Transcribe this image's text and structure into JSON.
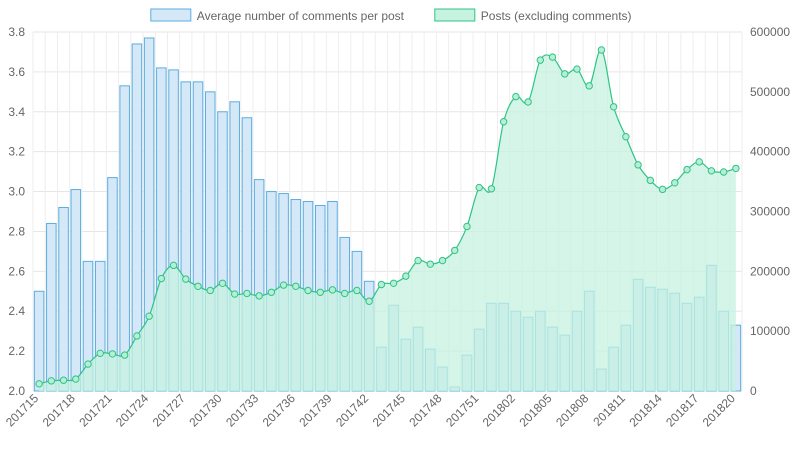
{
  "chart_data": {
    "type": "bar",
    "legend_position": "top-center",
    "grid": true,
    "categories": [
      "201715",
      "201716",
      "201717",
      "201718",
      "201719",
      "201720",
      "201721",
      "201722",
      "201723",
      "201724",
      "201725",
      "201726",
      "201727",
      "201728",
      "201729",
      "201730",
      "201731",
      "201732",
      "201733",
      "201734",
      "201735",
      "201736",
      "201737",
      "201738",
      "201739",
      "201740",
      "201741",
      "201742",
      "201743",
      "201744",
      "201745",
      "201746",
      "201747",
      "201748",
      "201749",
      "201750",
      "201751",
      "201752",
      "201801",
      "201802",
      "201803",
      "201804",
      "201805",
      "201806",
      "201807",
      "201808",
      "201809",
      "201810",
      "201811",
      "201812",
      "201813",
      "201814",
      "201815",
      "201816",
      "201817",
      "201818",
      "201819",
      "201820"
    ],
    "x_tick_labels": [
      "201715",
      "201718",
      "201721",
      "201724",
      "201727",
      "201730",
      "201733",
      "201736",
      "201739",
      "201742",
      "201745",
      "201748",
      "201751",
      "201802",
      "201805",
      "201808",
      "201811",
      "201814",
      "201817",
      "201820"
    ],
    "y_left": {
      "min": 2.0,
      "max": 3.8,
      "ticks": [
        "2.0",
        "2.2",
        "2.4",
        "2.6",
        "2.8",
        "3.0",
        "3.2",
        "3.4",
        "3.6",
        "3.8"
      ]
    },
    "y_right": {
      "min": 0,
      "max": 600000,
      "ticks": [
        "0",
        "100000",
        "200000",
        "300000",
        "400000",
        "500000",
        "600000"
      ]
    },
    "series": [
      {
        "name": "Average number of comments per post",
        "kind": "bar",
        "axis": "left",
        "fill": "#d5e8f8",
        "stroke": "#5aaee0",
        "values": [
          2.5,
          2.84,
          2.92,
          3.01,
          2.65,
          2.65,
          3.07,
          3.53,
          3.74,
          3.77,
          3.62,
          3.61,
          3.55,
          3.55,
          3.5,
          3.4,
          3.45,
          3.37,
          3.06,
          3.0,
          2.99,
          2.96,
          2.95,
          2.93,
          2.95,
          2.77,
          2.7,
          2.55,
          2.22,
          2.43,
          2.26,
          2.32,
          2.21,
          2.12,
          2.02,
          2.18,
          2.31,
          2.44,
          2.44,
          2.4,
          2.37,
          2.4,
          2.32,
          2.28,
          2.4,
          2.5,
          2.11,
          2.22,
          2.33,
          2.56,
          2.52,
          2.51,
          2.49,
          2.44,
          2.47,
          2.63,
          2.4,
          2.33
        ]
      },
      {
        "name": "Posts (excluding comments)",
        "kind": "area",
        "axis": "right",
        "fill": "#c6f2e0",
        "stroke": "#2ec486",
        "values": [
          12000,
          17000,
          18000,
          20000,
          45000,
          63000,
          62000,
          60000,
          92000,
          125000,
          188000,
          210000,
          187000,
          175000,
          168000,
          180000,
          162000,
          163000,
          159000,
          165000,
          177000,
          175000,
          168000,
          165000,
          169000,
          163000,
          168000,
          150000,
          178000,
          180000,
          192000,
          218000,
          212000,
          218000,
          235000,
          275000,
          340000,
          338000,
          450000,
          492000,
          483000,
          553000,
          558000,
          530000,
          538000,
          510000,
          570000,
          475000,
          425000,
          378000,
          352000,
          337000,
          348000,
          370000,
          383000,
          368000,
          366000,
          372000
        ]
      }
    ]
  }
}
